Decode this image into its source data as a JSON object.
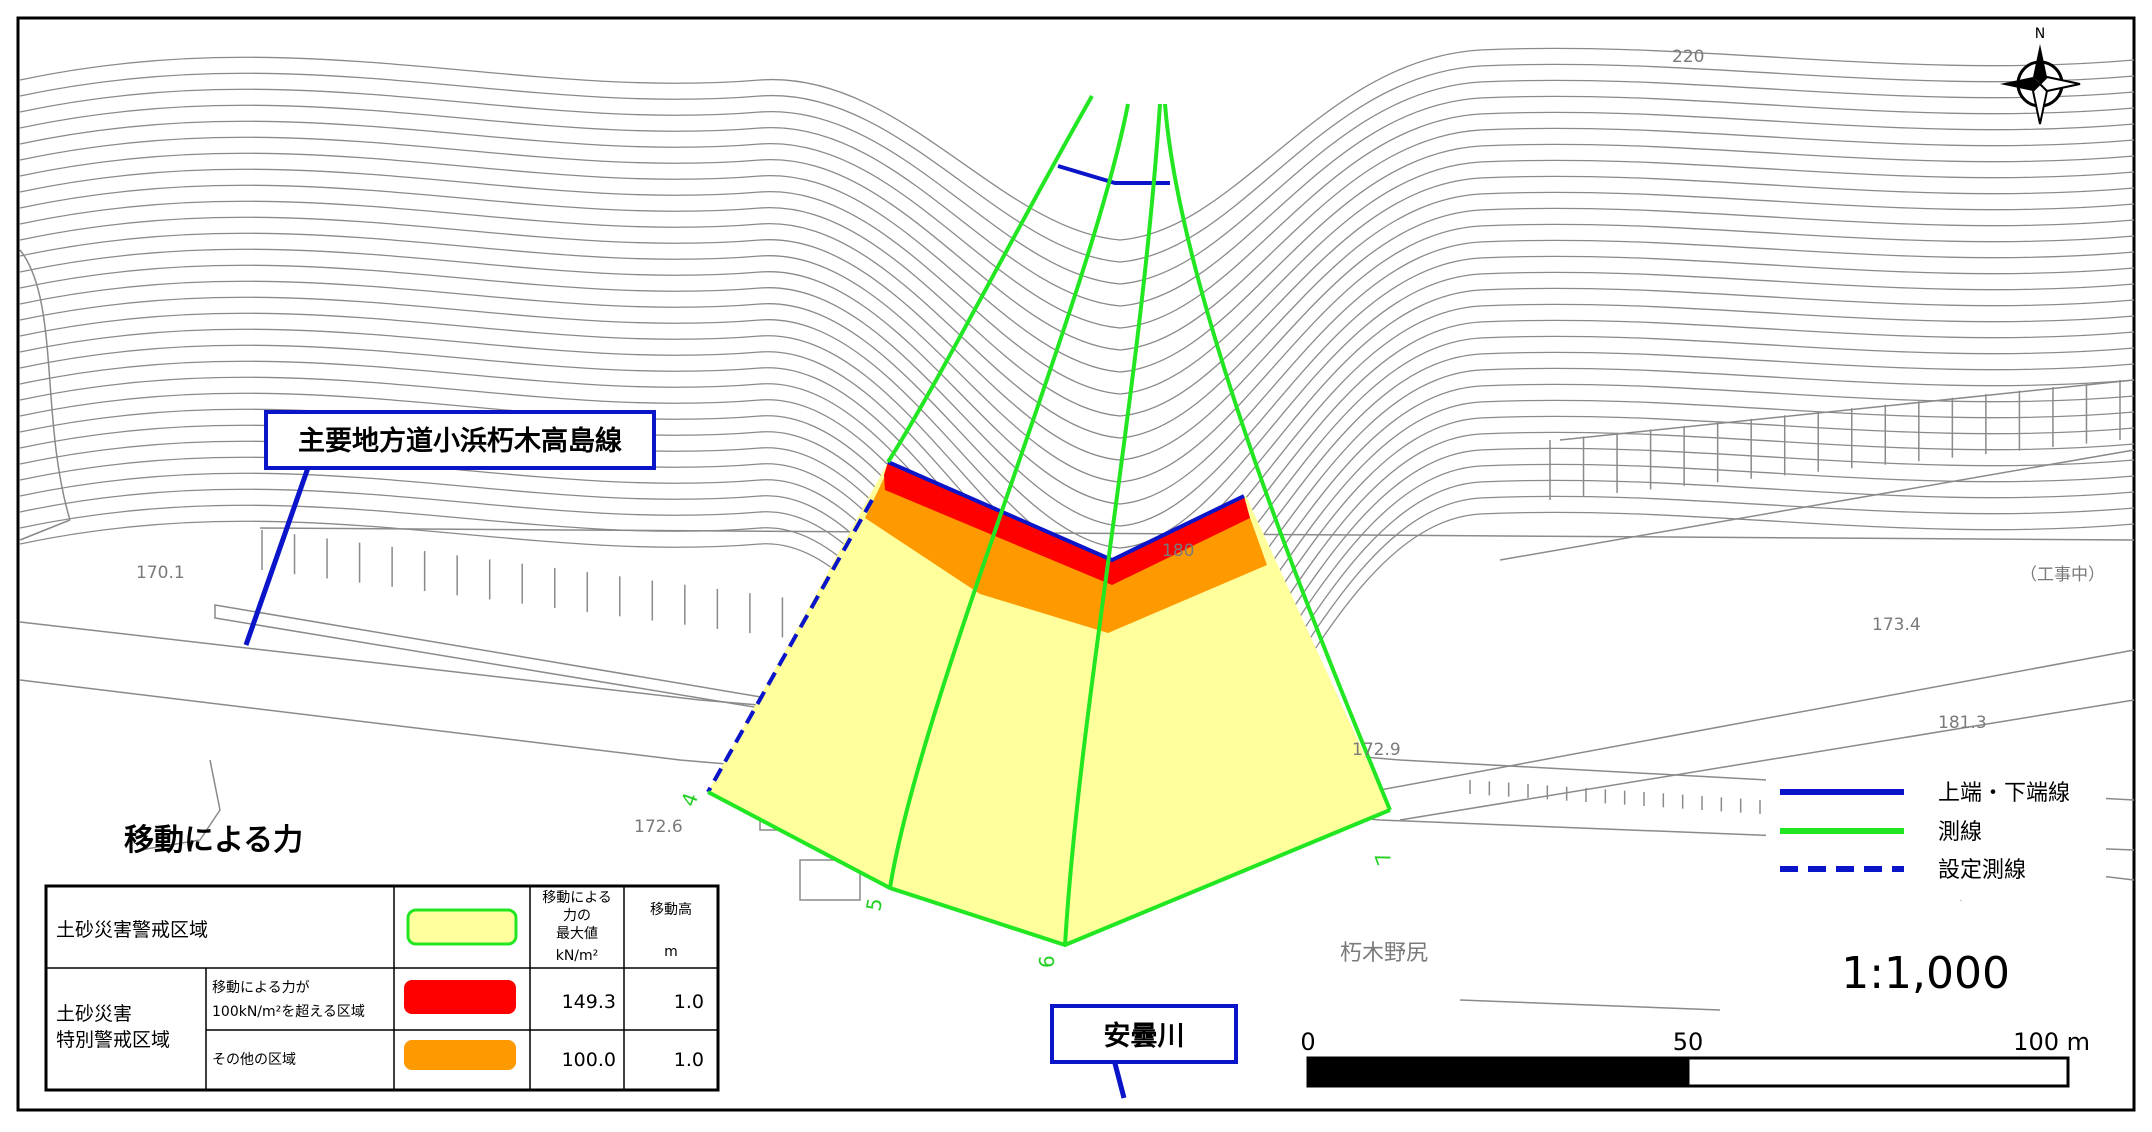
{
  "map": {
    "north_label": "N",
    "elevations": [
      "220",
      "170.1",
      "180",
      "173.4",
      "181.3",
      "172.9",
      "172.6"
    ],
    "note_construction": "（工事中）",
    "place_name": "朽木野尻",
    "survey_line_numbers": [
      "4",
      "5",
      "6",
      "7"
    ]
  },
  "callouts": {
    "road": "主要地方道小浜朽木高島線",
    "river": "安曇川"
  },
  "title": "移動による力",
  "table": {
    "header_value": [
      "移動による",
      "力の",
      "最大値"
    ],
    "header_value_unit": "kN/m²",
    "header_height": "移動高",
    "header_height_unit": "m",
    "row_warning": "土砂災害警戒区域",
    "row_special": [
      "土砂災害",
      "特別警戒区域"
    ],
    "sub_over": [
      "移動による力が",
      "100kN/m²を超える区域"
    ],
    "sub_other": "その他の区域",
    "over_value": "149.3",
    "over_height": "1.0",
    "other_value": "100.0",
    "other_height": "1.0"
  },
  "legend": {
    "items": [
      {
        "label": "上端・下端線",
        "color": "#0a14c8",
        "style": "solid"
      },
      {
        "label": "測線",
        "color": "#22e622",
        "style": "solid"
      },
      {
        "label": "設定測線",
        "color": "#0a14c8",
        "style": "dashed"
      }
    ]
  },
  "scale": {
    "ratio": "1:1,000",
    "ticks": [
      "0",
      "50",
      "100 m"
    ]
  },
  "colors": {
    "warning_zone": "#ffff9b",
    "special_over_100": "#ff0000",
    "special_other": "#ff9900",
    "survey_line": "#22e622",
    "edge_line": "#0a14c8"
  }
}
